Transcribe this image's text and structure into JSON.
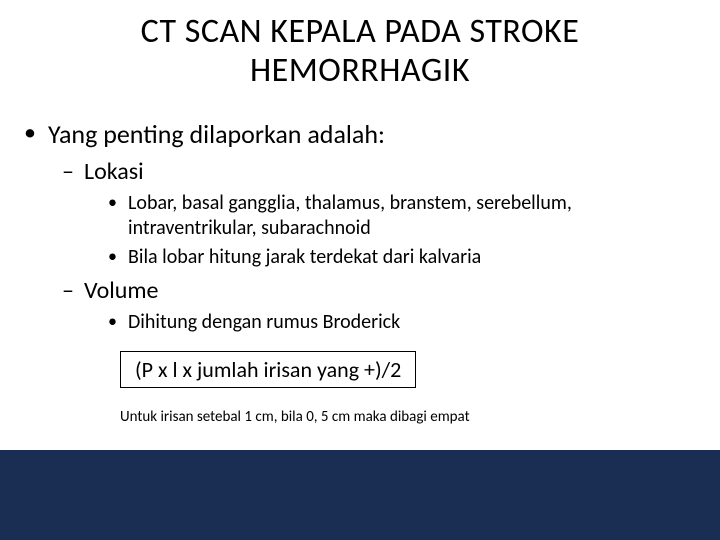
{
  "slide": {
    "background_color": "#1a2d52",
    "content_background": "#ffffff",
    "text_color": "#000000",
    "title": "CT SCAN KEPALA PADA STROKE HEMORRHAGIK",
    "title_fontsize": 34,
    "bullet_lvl1_fontsize": 26,
    "bullet_lvl2_fontsize": 24,
    "bullet_lvl3_fontsize": 20,
    "formula_fontsize": 22,
    "footnote_fontsize": 15,
    "lvl1": {
      "item1": "Yang penting dilaporkan adalah:"
    },
    "lvl2": {
      "lokasi": "Lokasi",
      "volume": "Volume"
    },
    "lvl3": {
      "lokasi1": "Lobar, basal gangglia, thalamus, branstem, serebellum, intraventrikular, subarachnoid",
      "lokasi2": "Bila lobar hitung jarak terdekat dari kalvaria",
      "volume1": "Dihitung dengan rumus Broderick"
    },
    "formula": "(P x l x jumlah irisan yang +)/2",
    "footnote": "Untuk irisan setebal 1 cm, bila 0, 5 cm maka dibagi empat"
  }
}
